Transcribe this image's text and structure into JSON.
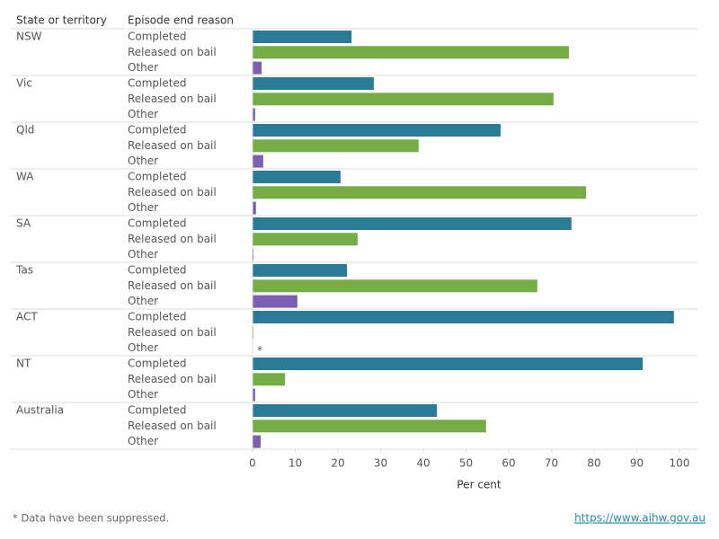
{
  "chart_data": {
    "type": "grouped-hbar",
    "group_header": "State or territory",
    "series_header": "Episode end reason",
    "categories": [
      "NSW",
      "Vic",
      "Qld",
      "WA",
      "SA",
      "Tas",
      "ACT",
      "NT",
      "Australia"
    ],
    "series": [
      {
        "name": "Completed",
        "color": "#2a7b95",
        "values": [
          23.2,
          28.4,
          58.1,
          20.6,
          74.7,
          22.1,
          98.7,
          91.4,
          43.2
        ]
      },
      {
        "name": "Released on bail",
        "color": "#73ad43",
        "values": [
          74.1,
          70.5,
          38.9,
          78.1,
          24.6,
          66.7,
          0.2,
          7.6,
          54.7
        ]
      },
      {
        "name": "Other",
        "color": "#7b5fb0",
        "values": [
          2.1,
          0.6,
          2.5,
          0.8,
          0.2,
          10.5,
          null,
          0.6,
          1.9
        ],
        "value_labels": [
          null,
          null,
          null,
          null,
          null,
          null,
          "*",
          null,
          null
        ]
      }
    ],
    "xlabel": "Per cent",
    "xlim": [
      0,
      100
    ],
    "xticks": [
      0,
      10,
      20,
      30,
      40,
      50,
      60,
      70,
      80,
      90,
      100
    ],
    "footnote": "* Data have been suppressed.",
    "source_url": "https://www.aihw.gov.au"
  }
}
